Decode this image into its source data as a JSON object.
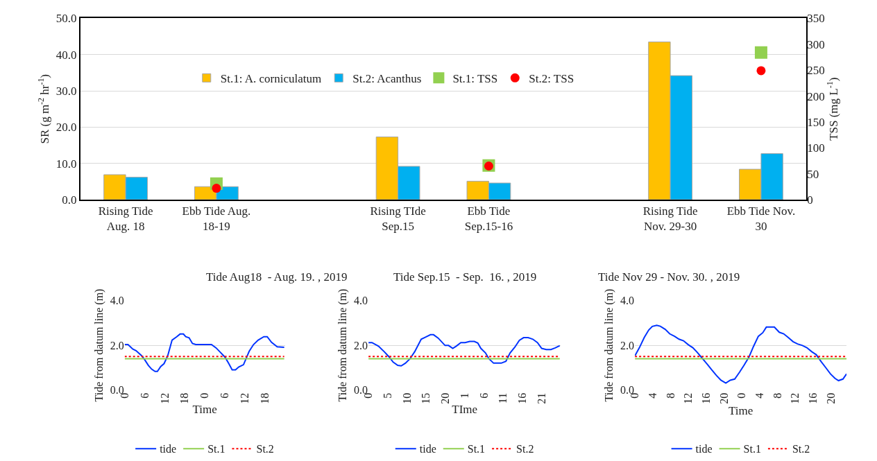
{
  "chart_data": [
    {
      "type": "bar",
      "categories": [
        "Rising Tide Aug. 18",
        "Ebb Tide Aug. 18-19",
        null,
        "Rising TIde Sep.15",
        "Ebb Tide Sep.15-16",
        null,
        "Rising Tide Nov. 29-30",
        "Ebb Tide Nov. 30"
      ],
      "ylabel": "SR (g m$^{-2}$ hr$^{-1}$)",
      "y2label": "TSS (mg L$^{-1}$)",
      "ylim": [
        0,
        50
      ],
      "yticks": [
        {
          "value": 0,
          "label": "0.0"
        },
        {
          "value": 10,
          "label": "10.0"
        },
        {
          "value": 20,
          "label": "20.0"
        },
        {
          "value": 30,
          "label": "30.0"
        },
        {
          "value": 40,
          "label": "40.0"
        },
        {
          "value": 50,
          "label": "50.0"
        }
      ],
      "y2lim": [
        0,
        350
      ],
      "y2ticks": [
        0,
        50,
        100,
        150,
        200,
        250,
        300,
        350
      ],
      "grid": "y",
      "legend": "top",
      "series": [
        {
          "name": "St.1: A. corniculatum",
          "color": "#ffc000",
          "values": [
            6.9,
            3.6,
            null,
            17.3,
            5.1,
            null,
            43.5,
            8.4
          ]
        },
        {
          "name": "St.2: Acanthus",
          "color": "#00b0f0",
          "values": [
            6.2,
            3.6,
            null,
            9.2,
            4.6,
            null,
            34.2,
            12.7
          ]
        },
        {
          "name": "St.1: TSS",
          "type": "scatter",
          "axis": "y2",
          "marker": "square",
          "color": "#92d050",
          "values": [
            null,
            31,
            null,
            null,
            66,
            null,
            null,
            284
          ]
        },
        {
          "name": "St.2: TSS",
          "type": "scatter",
          "axis": "y2",
          "marker": "circle",
          "color": "#ff0000",
          "values": [
            null,
            22,
            null,
            null,
            65,
            null,
            null,
            249
          ]
        }
      ]
    },
    {
      "type": "line",
      "title": "Tide Aug18  - Aug. 19. , 2019",
      "xlabel": "Time",
      "ylabel": "Tide from datum line (m)",
      "xlim": [
        "2019-08-18T00:00",
        "2019-08-20T00:00"
      ],
      "xticks": [
        {
          "value": "2019-08-18T00:00",
          "label": "0"
        },
        {
          "value": "2019-08-18T06:00",
          "label": "6"
        },
        {
          "value": "2019-08-18T12:00",
          "label": "12"
        },
        {
          "value": "2019-08-18T18:00",
          "label": "18"
        },
        {
          "value": "2019-08-19T00:00",
          "label": "0"
        },
        {
          "value": "2019-08-19T06:00",
          "label": "6"
        },
        {
          "value": "2019-08-19T12:00",
          "label": "12"
        },
        {
          "value": "2019-08-19T18:00",
          "label": "18"
        }
      ],
      "ylim": [
        0,
        4
      ],
      "yticks": [
        {
          "value": 0,
          "label": "0.0"
        },
        {
          "value": 2,
          "label": "2.0"
        },
        {
          "value": 4,
          "label": "4.0"
        }
      ],
      "grid": "y",
      "legend": "bottom",
      "series": [
        {
          "name": "tide",
          "color": "#0033ff",
          "x": [
            "2019-08-18T00:00",
            "2019-08-18T01:00",
            "2019-08-18T02:24",
            "2019-08-18T03:24",
            "2019-08-18T05:06",
            "2019-08-18T06:06",
            "2019-08-18T07:06",
            "2019-08-18T08:06",
            "2019-08-18T09:06",
            "2019-08-18T09:48",
            "2019-08-18T10:48",
            "2019-08-18T11:48",
            "2019-08-18T12:54",
            "2019-08-18T14:12",
            "2019-08-18T15:36",
            "2019-08-18T16:36",
            "2019-08-18T17:36",
            "2019-08-18T18:18",
            "2019-08-18T19:18",
            "2019-08-18T20:18",
            "2019-08-18T21:18",
            "2019-08-19T02:00",
            "2019-08-19T03:24",
            "2019-08-19T04:42",
            "2019-08-19T06:06",
            "2019-08-19T07:12",
            "2019-08-19T08:12",
            "2019-08-19T09:12",
            "2019-08-19T10:12",
            "2019-08-19T11:36",
            "2019-08-19T13:18",
            "2019-08-19T14:36",
            "2019-08-19T16:00",
            "2019-08-19T17:42",
            "2019-08-19T18:42",
            "2019-08-19T20:00",
            "2019-08-19T21:42",
            "2019-08-19T23:48"
          ],
          "values": [
            2.03,
            2.03,
            1.83,
            1.76,
            1.53,
            1.33,
            1.1,
            0.93,
            0.83,
            0.83,
            1.05,
            1.18,
            1.53,
            2.23,
            2.38,
            2.5,
            2.5,
            2.38,
            2.33,
            2.08,
            2.03,
            2.03,
            1.88,
            1.68,
            1.46,
            1.18,
            0.9,
            0.9,
            1.03,
            1.13,
            1.73,
            2.03,
            2.23,
            2.38,
            2.38,
            2.13,
            1.93,
            1.91
          ]
        },
        {
          "name": "St.1",
          "color": "#92d050",
          "x": [
            "2019-08-18T00:00",
            "2019-08-19T23:48"
          ],
          "values": [
            1.4,
            1.4
          ]
        },
        {
          "name": "St.2",
          "color": "#ff0000",
          "line_style": "dotted",
          "x": [
            "2019-08-18T00:00",
            "2019-08-19T23:48"
          ],
          "values": [
            1.5,
            1.5
          ]
        }
      ]
    },
    {
      "type": "line",
      "title": "Tide Sep.15  - Sep.  16. , 2019",
      "xlabel": "TIme",
      "ylabel": "Tide from datum line (m)",
      "xlim": [
        "2019-09-15T00:00",
        "2019-09-17T02:00"
      ],
      "xticks": [
        {
          "value": "2019-09-15T00:00",
          "label": "0"
        },
        {
          "value": "2019-09-15T05:00",
          "label": "5"
        },
        {
          "value": "2019-09-15T10:00",
          "label": "10"
        },
        {
          "value": "2019-09-15T15:00",
          "label": "15"
        },
        {
          "value": "2019-09-15T20:00",
          "label": "20"
        },
        {
          "value": "2019-09-16T01:00",
          "label": "1"
        },
        {
          "value": "2019-09-16T06:00",
          "label": "6"
        },
        {
          "value": "2019-09-16T11:00",
          "label": "11"
        },
        {
          "value": "2019-09-16T16:00",
          "label": "16"
        },
        {
          "value": "2019-09-16T21:00",
          "label": "21"
        }
      ],
      "ylim": [
        0,
        4
      ],
      "yticks": [
        {
          "value": 0,
          "label": "0.0"
        },
        {
          "value": 2,
          "label": "2.0"
        },
        {
          "value": 4,
          "label": "4.0"
        }
      ],
      "grid": "y",
      "legend": "bottom",
      "series": [
        {
          "name": "tide",
          "color": "#0033ff",
          "x": [
            "2019-09-15T00:00",
            "2019-09-15T00:54",
            "2019-09-15T02:36",
            "2019-09-15T04:06",
            "2019-09-15T05:18",
            "2019-09-15T06:24",
            "2019-09-15T07:36",
            "2019-09-15T08:30",
            "2019-09-15T09:36",
            "2019-09-15T10:48",
            "2019-09-15T12:00",
            "2019-09-15T13:42",
            "2019-09-15T14:54",
            "2019-09-15T16:06",
            "2019-09-15T16:54",
            "2019-09-15T18:06",
            "2019-09-15T19:54",
            "2019-09-15T20:48",
            "2019-09-15T21:54",
            "2019-09-15T22:48",
            "2019-09-16T00:00",
            "2019-09-16T01:06",
            "2019-09-16T02:18",
            "2019-09-16T03:30",
            "2019-09-16T04:24",
            "2019-09-16T05:12",
            "2019-09-16T06:24",
            "2019-09-16T07:18",
            "2019-09-16T08:30",
            "2019-09-16T10:30",
            "2019-09-16T11:42",
            "2019-09-16T12:48",
            "2019-09-16T14:00",
            "2019-09-16T15:12",
            "2019-09-16T16:18",
            "2019-09-16T17:30",
            "2019-09-16T18:42",
            "2019-09-16T19:54",
            "2019-09-16T21:00",
            "2019-09-16T22:12",
            "2019-09-16T23:24",
            "2019-09-17T00:30",
            "2019-09-17T01:42"
          ],
          "values": [
            2.12,
            2.12,
            1.96,
            1.71,
            1.49,
            1.25,
            1.1,
            1.08,
            1.2,
            1.4,
            1.71,
            2.27,
            2.37,
            2.47,
            2.47,
            2.32,
            1.99,
            1.99,
            1.86,
            1.96,
            2.12,
            2.12,
            2.17,
            2.17,
            2.1,
            1.86,
            1.66,
            1.4,
            1.2,
            1.2,
            1.28,
            1.66,
            1.91,
            2.22,
            2.34,
            2.34,
            2.27,
            2.12,
            1.86,
            1.81,
            1.81,
            1.88,
            1.98
          ]
        },
        {
          "name": "St.1",
          "color": "#92d050",
          "x": [
            "2019-09-15T00:00",
            "2019-09-17T01:42"
          ],
          "values": [
            1.4,
            1.4
          ]
        },
        {
          "name": "St.2",
          "color": "#ff0000",
          "line_style": "dotted",
          "x": [
            "2019-09-15T00:00",
            "2019-09-17T01:42"
          ],
          "values": [
            1.5,
            1.5
          ]
        }
      ]
    },
    {
      "type": "line",
      "title": "Tide Nov 29 - Nov. 30. , 2019",
      "xlabel": "Time",
      "ylabel": "Tide from datum line (m)",
      "xlim": [
        "2019-11-29T00:00",
        "2019-11-30T23:30"
      ],
      "xticks": [
        {
          "value": "2019-11-29T00:00",
          "label": "0"
        },
        {
          "value": "2019-11-29T04:00",
          "label": "4"
        },
        {
          "value": "2019-11-29T08:00",
          "label": "8"
        },
        {
          "value": "2019-11-29T12:00",
          "label": "12"
        },
        {
          "value": "2019-11-29T16:00",
          "label": "16"
        },
        {
          "value": "2019-11-29T20:00",
          "label": "20"
        },
        {
          "value": "2019-11-30T00:00",
          "label": "0"
        },
        {
          "value": "2019-11-30T04:00",
          "label": "4"
        },
        {
          "value": "2019-11-30T08:00",
          "label": "8"
        },
        {
          "value": "2019-11-30T12:00",
          "label": "12"
        },
        {
          "value": "2019-11-30T16:00",
          "label": "16"
        },
        {
          "value": "2019-11-30T20:00",
          "label": "20"
        }
      ],
      "ylim": [
        0,
        4
      ],
      "yticks": [
        {
          "value": 0,
          "label": "0.0"
        },
        {
          "value": 2,
          "label": "2.0"
        },
        {
          "value": 4,
          "label": "4.0"
        }
      ],
      "grid": "y",
      "legend": "bottom",
      "series": [
        {
          "name": "tide",
          "color": "#0033ff",
          "x": [
            "2019-11-29T00:00",
            "2019-11-29T01:00",
            "2019-11-29T02:06",
            "2019-11-29T03:06",
            "2019-11-29T03:54",
            "2019-11-29T04:54",
            "2019-11-29T05:42",
            "2019-11-29T06:48",
            "2019-11-29T07:48",
            "2019-11-29T08:54",
            "2019-11-29T09:54",
            "2019-11-29T10:54",
            "2019-11-29T12:00",
            "2019-11-29T13:00",
            "2019-11-29T14:00",
            "2019-11-29T15:06",
            "2019-11-29T16:12",
            "2019-11-29T17:12",
            "2019-11-29T18:18",
            "2019-11-29T19:18",
            "2019-11-29T20:24",
            "2019-11-29T21:24",
            "2019-11-29T22:24",
            "2019-11-29T23:30",
            "2019-11-30T00:30",
            "2019-11-30T01:36",
            "2019-11-30T02:36",
            "2019-11-30T03:42",
            "2019-11-30T04:42",
            "2019-11-30T05:30",
            "2019-11-30T06:18",
            "2019-11-30T07:18",
            "2019-11-30T08:24",
            "2019-11-30T09:24",
            "2019-11-30T10:24",
            "2019-11-30T11:30",
            "2019-11-30T12:30",
            "2019-11-30T13:36",
            "2019-11-30T14:36",
            "2019-11-30T15:42",
            "2019-11-30T16:42",
            "2019-11-30T17:48",
            "2019-11-30T18:48",
            "2019-11-30T19:54",
            "2019-11-30T20:54",
            "2019-11-30T21:42",
            "2019-11-30T22:42",
            "2019-11-30T23:30"
          ],
          "values": [
            1.53,
            1.89,
            2.35,
            2.68,
            2.84,
            2.89,
            2.85,
            2.71,
            2.51,
            2.4,
            2.27,
            2.2,
            2.02,
            1.89,
            1.68,
            1.42,
            1.16,
            0.91,
            0.65,
            0.44,
            0.31,
            0.44,
            0.49,
            0.8,
            1.11,
            1.47,
            1.94,
            2.4,
            2.56,
            2.81,
            2.81,
            2.81,
            2.58,
            2.51,
            2.35,
            2.16,
            2.06,
            1.99,
            1.89,
            1.71,
            1.58,
            1.27,
            1.01,
            0.72,
            0.52,
            0.42,
            0.49,
            0.72
          ]
        },
        {
          "name": "St.1",
          "color": "#92d050",
          "x": [
            "2019-11-29T00:00",
            "2019-11-30T23:30"
          ],
          "values": [
            1.4,
            1.4
          ]
        },
        {
          "name": "St.2",
          "color": "#ff0000",
          "line_style": "dotted",
          "x": [
            "2019-11-29T00:00",
            "2019-11-30T23:30"
          ],
          "values": [
            1.5,
            1.5
          ]
        }
      ]
    }
  ]
}
